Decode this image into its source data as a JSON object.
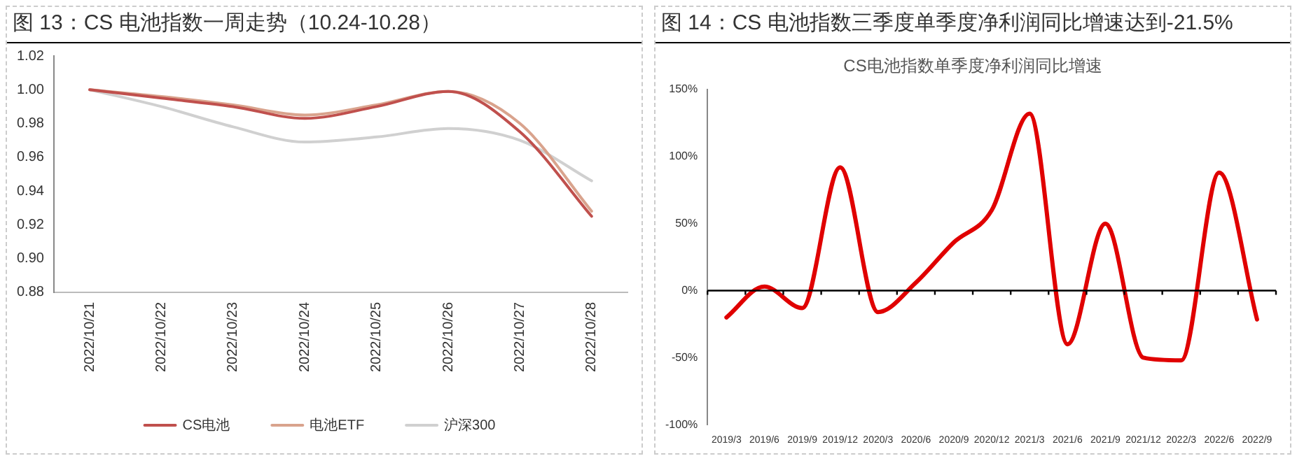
{
  "chart_data": [
    {
      "type": "line",
      "title": "图 13：CS 电池指数一周走势（10.24-10.28）",
      "categories": [
        "2022/10/21",
        "2022/10/22",
        "2022/10/23",
        "2022/10/24",
        "2022/10/25",
        "2022/10/26",
        "2022/10/27",
        "2022/10/28"
      ],
      "series": [
        {
          "name": "CS电池",
          "color": "#c0504d",
          "values": [
            1.0,
            0.995,
            0.99,
            0.983,
            0.99,
            0.999,
            0.975,
            0.925
          ]
        },
        {
          "name": "电池ETF",
          "color": "#d9a38d",
          "values": [
            1.0,
            0.996,
            0.991,
            0.985,
            0.991,
            0.999,
            0.98,
            0.928
          ]
        },
        {
          "name": "沪深300",
          "color": "#d0d0d0",
          "values": [
            1.0,
            0.99,
            0.978,
            0.969,
            0.972,
            0.977,
            0.97,
            0.946
          ]
        }
      ],
      "ylim": [
        0.88,
        1.02
      ],
      "yticks": [
        {
          "value": 0.88,
          "label": "0.88"
        },
        {
          "value": 0.9,
          "label": "0.90"
        },
        {
          "value": 0.92,
          "label": "0.92"
        },
        {
          "value": 0.94,
          "label": "0.94"
        },
        {
          "value": 0.96,
          "label": "0.96"
        },
        {
          "value": 0.98,
          "label": "0.98"
        },
        {
          "value": 1,
          "label": "1.00"
        },
        {
          "value": 1.02,
          "label": "1.02"
        }
      ],
      "grid": false,
      "legend": "bottom",
      "marker": "none",
      "line_style": "solid"
    },
    {
      "type": "line",
      "title": "图 14：CS 电池指数三季度单季度净利润同比增速达到-21.5%",
      "subtitle": "CS电池指数单季度净利润同比增速",
      "categories": [
        "2019/3",
        "2019/6",
        "2019/9",
        "2019/12",
        "2020/3",
        "2020/6",
        "2020/9",
        "2020/12",
        "2021/3",
        "2021/6",
        "2021/9",
        "2021/12",
        "2022/3",
        "2022/6",
        "2022/9"
      ],
      "series": [
        {
          "color": "#e00000",
          "values": [
            -20,
            3,
            -13,
            92,
            -16,
            6,
            36,
            60,
            132,
            -40,
            50,
            -50,
            -52,
            88,
            -21.5
          ]
        }
      ],
      "ylim": [
        -100,
        150
      ],
      "yticks": [
        {
          "value": -100,
          "label": "-100%"
        },
        {
          "value": -50,
          "label": "-50%"
        },
        {
          "value": 0,
          "label": "0%"
        },
        {
          "value": 50,
          "label": "50%"
        },
        {
          "value": 100,
          "label": "100%"
        },
        {
          "value": 150,
          "label": "150%"
        }
      ],
      "ref_lines": [
        {
          "axis": "y",
          "value": 0,
          "color": "#000000"
        }
      ],
      "grid": false,
      "legend": false,
      "marker": "none",
      "line_style": "solid"
    }
  ]
}
